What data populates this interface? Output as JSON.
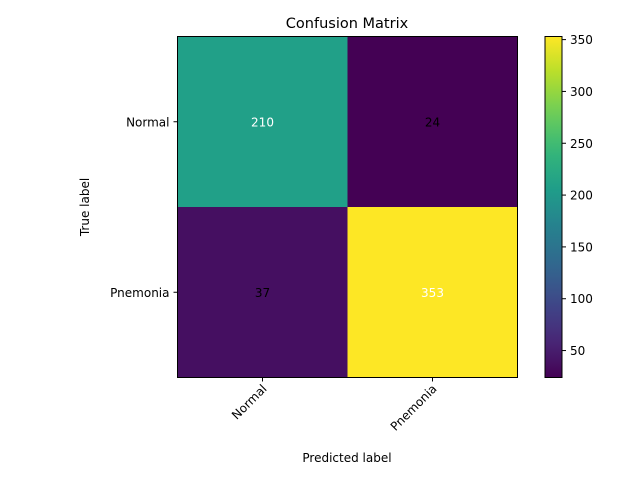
{
  "chart_data": {
    "type": "heatmap",
    "title": "Confusion Matrix",
    "xlabel": "Predicted label",
    "ylabel": "True label",
    "x_categories": [
      "Normal",
      "Pnemonia"
    ],
    "y_categories": [
      "Normal",
      "Pnemonia"
    ],
    "values": [
      [
        210,
        24
      ],
      [
        37,
        353
      ]
    ],
    "colormap": "viridis",
    "colorbar": {
      "min": 24,
      "max": 353,
      "ticks": [
        50,
        100,
        150,
        200,
        250,
        300,
        350
      ]
    },
    "grid": false,
    "colors": {
      "viridis_stops": [
        "#440154",
        "#482878",
        "#3e4989",
        "#31688e",
        "#26828e",
        "#1f9e89",
        "#35b779",
        "#6ece58",
        "#b5de2b",
        "#fde725"
      ],
      "text_light": "#ffffff",
      "text_dark": "#000000"
    }
  }
}
